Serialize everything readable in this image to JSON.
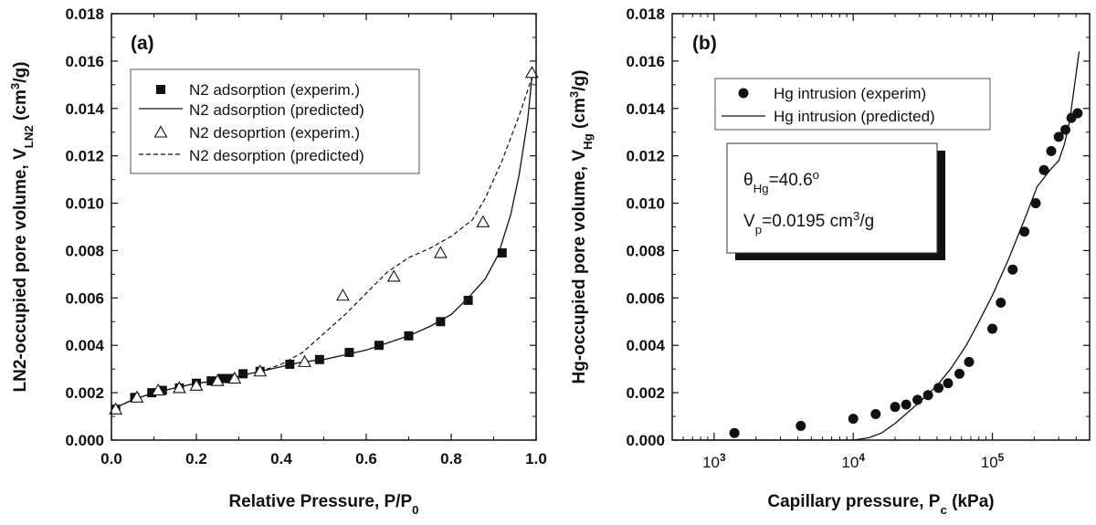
{
  "chart_data": [
    {
      "type": "line",
      "panel_label": "(a)",
      "xlabel": "Relative Pressure, P/P",
      "xlabel_sub": "0",
      "ylabel": "LN2-occupied pore volume, V",
      "ylabel_sub": "LN2",
      "ylabel_units_pre": "(cm",
      "ylabel_units_sup": "3",
      "ylabel_units_post": "/g)",
      "xlim": [
        0.0,
        1.0
      ],
      "ylim": [
        0.0,
        0.018
      ],
      "x_ticks": [
        0.0,
        0.2,
        0.4,
        0.6,
        0.8,
        1.0
      ],
      "x_tick_labels": [
        "0.0",
        "0.2",
        "0.4",
        "0.6",
        "0.8",
        "1.0"
      ],
      "y_ticks": [
        0.0,
        0.002,
        0.004,
        0.006,
        0.008,
        0.01,
        0.012,
        0.014,
        0.016,
        0.018
      ],
      "y_tick_labels": [
        "0.000",
        "0.002",
        "0.004",
        "0.006",
        "0.008",
        "0.010",
        "0.012",
        "0.014",
        "0.016",
        "0.018"
      ],
      "legend_position": "top-right",
      "series": [
        {
          "name": "N2 adsorption (experim.)",
          "kind": "scatter",
          "marker": "filled-square",
          "x": [
            0.01,
            0.055,
            0.095,
            0.12,
            0.16,
            0.2,
            0.235,
            0.26,
            0.28,
            0.31,
            0.35,
            0.42,
            0.49,
            0.56,
            0.63,
            0.7,
            0.775,
            0.84,
            0.92
          ],
          "y": [
            0.0013,
            0.0018,
            0.002,
            0.0021,
            0.0022,
            0.0024,
            0.0025,
            0.0026,
            0.0026,
            0.0028,
            0.0029,
            0.0032,
            0.0034,
            0.0037,
            0.004,
            0.0044,
            0.005,
            0.0059,
            0.0079
          ]
        },
        {
          "name": "N2 adsorption (predicted)",
          "kind": "line",
          "style": "solid",
          "x": [
            0.0,
            0.05,
            0.1,
            0.15,
            0.2,
            0.25,
            0.3,
            0.35,
            0.4,
            0.45,
            0.5,
            0.55,
            0.6,
            0.65,
            0.7,
            0.75,
            0.8,
            0.84,
            0.88,
            0.91,
            0.94,
            0.96,
            0.98,
            0.99
          ],
          "y": [
            0.0013,
            0.0017,
            0.002,
            0.0022,
            0.0024,
            0.0025,
            0.0027,
            0.0029,
            0.0031,
            0.0033,
            0.0034,
            0.0036,
            0.0038,
            0.0041,
            0.0044,
            0.0048,
            0.0053,
            0.006,
            0.0068,
            0.0078,
            0.0095,
            0.0112,
            0.0135,
            0.0153
          ]
        },
        {
          "name": "N2 desoprtion (experim.)",
          "kind": "scatter",
          "marker": "open-triangle",
          "x": [
            0.01,
            0.06,
            0.11,
            0.16,
            0.2,
            0.25,
            0.29,
            0.35,
            0.455,
            0.545,
            0.665,
            0.775,
            0.875,
            0.99
          ],
          "y": [
            0.0013,
            0.0018,
            0.0021,
            0.0022,
            0.0023,
            0.0025,
            0.0026,
            0.0029,
            0.0033,
            0.0061,
            0.0069,
            0.0079,
            0.0092,
            0.0155
          ]
        },
        {
          "name": "N2 desorption (predicted)",
          "kind": "line",
          "style": "dashed",
          "x": [
            0.0,
            0.05,
            0.1,
            0.15,
            0.2,
            0.25,
            0.3,
            0.35,
            0.4,
            0.45,
            0.5,
            0.55,
            0.6,
            0.65,
            0.7,
            0.75,
            0.8,
            0.85,
            0.88,
            0.92,
            0.96,
            0.99
          ],
          "y": [
            0.0013,
            0.0017,
            0.002,
            0.0022,
            0.0024,
            0.0025,
            0.0027,
            0.0029,
            0.0032,
            0.0037,
            0.0045,
            0.0053,
            0.0062,
            0.0071,
            0.0077,
            0.0081,
            0.0086,
            0.0093,
            0.0102,
            0.0118,
            0.0137,
            0.0153
          ]
        }
      ]
    },
    {
      "type": "line",
      "panel_label": "(b)",
      "xlabel": "Capillary pressure, P",
      "xlabel_sub": "c",
      "xlabel_post": " (kPa)",
      "ylabel": "Hg-occupied pore volume, V",
      "ylabel_sub": "Hg",
      "ylabel_units_pre": "(cm",
      "ylabel_units_sup": "3",
      "ylabel_units_post": "/g)",
      "xscale": "log",
      "xlim": [
        500,
        500000
      ],
      "ylim": [
        0.0,
        0.018
      ],
      "x_ticks": [
        1000,
        10000,
        100000
      ],
      "x_tick_labels": [
        {
          "base": "10",
          "exp": "3"
        },
        {
          "base": "10",
          "exp": "4"
        },
        {
          "base": "10",
          "exp": "5"
        }
      ],
      "y_ticks": [
        0.0,
        0.002,
        0.004,
        0.006,
        0.008,
        0.01,
        0.012,
        0.014,
        0.016,
        0.018
      ],
      "y_tick_labels": [
        "0.000",
        "0.002",
        "0.004",
        "0.006",
        "0.008",
        "0.010",
        "0.012",
        "0.014",
        "0.016",
        "0.018"
      ],
      "legend_position": "top-left",
      "annotation": {
        "theta_symbol": "θ",
        "theta_sub": "Hg",
        "theta_value": "=40.6",
        "theta_sup": "o",
        "vp_symbol": "V",
        "vp_sub": "p",
        "vp_value": "=0.0195 cm",
        "vp_sup": "3",
        "vp_post": "/g"
      },
      "series": [
        {
          "name": "Hg intrusion (experim)",
          "kind": "scatter",
          "marker": "filled-circle",
          "x": [
            1400,
            4200,
            10000,
            14500,
            20000,
            24000,
            29000,
            34500,
            41000,
            48000,
            58000,
            68000,
            100000,
            115000,
            140000,
            170000,
            205000,
            235000,
            265000,
            300000,
            335000,
            370000,
            410000
          ],
          "y": [
            0.0003,
            0.0006,
            0.0009,
            0.0011,
            0.0014,
            0.0015,
            0.0017,
            0.0019,
            0.0022,
            0.0024,
            0.0028,
            0.0033,
            0.0047,
            0.0058,
            0.0072,
            0.0088,
            0.01,
            0.0114,
            0.0122,
            0.0128,
            0.0131,
            0.0136,
            0.0138
          ]
        },
        {
          "name": "Hg intrusion (predicted)",
          "kind": "line",
          "style": "solid",
          "x": [
            500,
            10000,
            13000,
            16000,
            20000,
            25000,
            30000,
            40000,
            50000,
            65000,
            80000,
            100000,
            130000,
            170000,
            210000,
            260000,
            300000,
            330000,
            360000,
            390000,
            420000
          ],
          "y": [
            0.0,
            0.0,
            0.0001,
            0.0003,
            0.0007,
            0.0012,
            0.0016,
            0.0023,
            0.003,
            0.004,
            0.005,
            0.0061,
            0.0076,
            0.0093,
            0.0107,
            0.0114,
            0.0118,
            0.0125,
            0.0135,
            0.015,
            0.0164
          ]
        }
      ]
    }
  ]
}
